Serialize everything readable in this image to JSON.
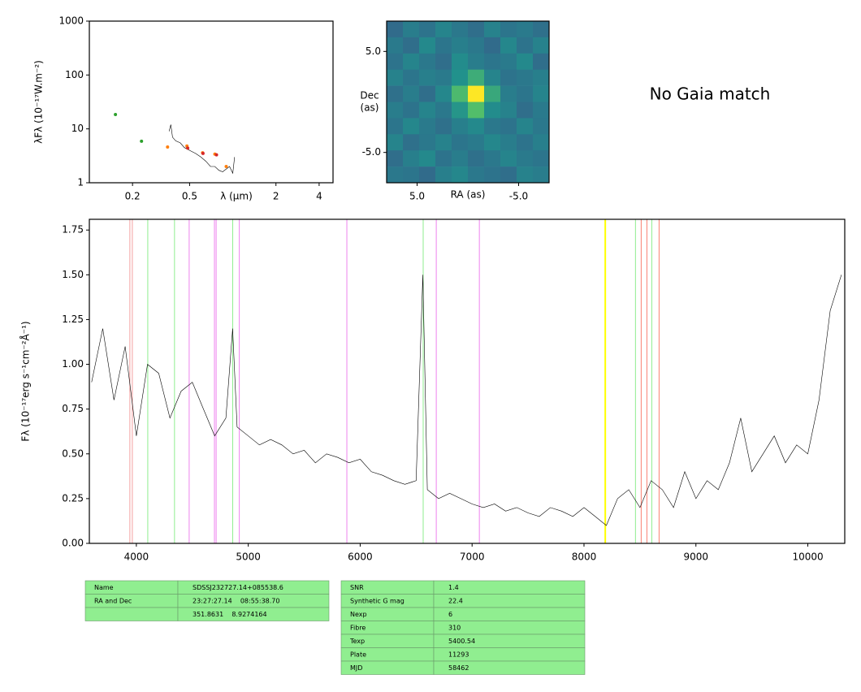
{
  "chart_data": [
    {
      "type": "scatter",
      "log_x": true,
      "log_y": true,
      "ylabel": "λFλ (10⁻¹⁷W.m⁻²)",
      "xlabel": "λ (μm)",
      "xlim": [
        0.1,
        5
      ],
      "xticks": [
        0.2,
        0.5,
        2,
        4
      ],
      "ylim": [
        1,
        1000
      ],
      "yticks": [
        1,
        10,
        100,
        1000
      ],
      "series": [
        {
          "color": "#2ca02c",
          "x": [
            0.152,
            0.231
          ],
          "values": [
            18.5,
            5.9
          ]
        },
        {
          "color": "#ff7f0e",
          "x": [
            0.351,
            0.479,
            0.616,
            0.75,
            0.9
          ],
          "values": [
            4.6,
            4.8,
            3.6,
            3.4,
            2.0
          ]
        },
        {
          "color": "#d62728",
          "x": [
            0.485,
            0.62,
            0.77
          ],
          "values": [
            4.4,
            3.5,
            3.3
          ]
        }
      ],
      "spectrum": {
        "color": "#000000",
        "x": [
          0.36,
          0.37,
          0.38,
          0.4,
          0.43,
          0.46,
          0.5,
          0.55,
          0.6,
          0.65,
          0.7,
          0.75,
          0.8,
          0.85,
          0.9,
          0.95,
          1.0,
          1.03
        ],
        "values": [
          9,
          12,
          7,
          6,
          5.5,
          4.5,
          4,
          3.5,
          3,
          2.5,
          2,
          2,
          1.7,
          1.6,
          1.8,
          2,
          1.5,
          3
        ]
      }
    },
    {
      "type": "image",
      "colormap": "viridis",
      "xlabel": "RA (as)",
      "ylabel": "Dec\n(as)",
      "xlim": [
        8,
        -8
      ],
      "ylim": [
        -8,
        8
      ],
      "xticks": [
        {
          "value": 5,
          "label": "5.0"
        },
        {
          "value": -5,
          "label": "-5.0"
        }
      ],
      "yticks": [
        {
          "value": 5,
          "label": "5.0"
        },
        {
          "value": -5,
          "label": "-5.0"
        }
      ],
      "matrix": [
        [
          0.35,
          0.42,
          0.38,
          0.45,
          0.4,
          0.36,
          0.44,
          0.39,
          0.41,
          0.37
        ],
        [
          0.41,
          0.36,
          0.47,
          0.39,
          0.43,
          0.4,
          0.35,
          0.46,
          0.38,
          0.44
        ],
        [
          0.38,
          0.45,
          0.4,
          0.36,
          0.48,
          0.42,
          0.39,
          0.41,
          0.47,
          0.36
        ],
        [
          0.44,
          0.39,
          0.43,
          0.41,
          0.5,
          0.62,
          0.45,
          0.38,
          0.4,
          0.43
        ],
        [
          0.37,
          0.42,
          0.36,
          0.46,
          0.68,
          1.0,
          0.6,
          0.42,
          0.39,
          0.45
        ],
        [
          0.42,
          0.38,
          0.45,
          0.4,
          0.52,
          0.7,
          0.48,
          0.44,
          0.36,
          0.41
        ],
        [
          0.39,
          0.46,
          0.41,
          0.37,
          0.43,
          0.47,
          0.4,
          0.38,
          0.45,
          0.4
        ],
        [
          0.45,
          0.37,
          0.4,
          0.44,
          0.39,
          0.41,
          0.46,
          0.42,
          0.38,
          0.43
        ],
        [
          0.36,
          0.43,
          0.47,
          0.38,
          0.42,
          0.37,
          0.4,
          0.45,
          0.41,
          0.39
        ],
        [
          0.4,
          0.39,
          0.35,
          0.43,
          0.46,
          0.4,
          0.38,
          0.36,
          0.44,
          0.42
        ]
      ]
    },
    {
      "type": "line",
      "ylabel": "Fλ (10⁻¹⁷erg s⁻¹cm⁻²Å⁻¹)",
      "xlim": [
        3580,
        10330
      ],
      "xticks": [
        4000,
        5000,
        6000,
        7000,
        8000,
        9000,
        10000
      ],
      "ylim": [
        0,
        1.81
      ],
      "yticks": [
        {
          "value": 0,
          "label": "0.00"
        },
        {
          "value": 0.25,
          "label": "0.25"
        },
        {
          "value": 0.5,
          "label": "0.50"
        },
        {
          "value": 0.75,
          "label": "0.75"
        },
        {
          "value": 1,
          "label": "1.00"
        },
        {
          "value": 1.25,
          "label": "1.25"
        },
        {
          "value": 1.5,
          "label": "1.50"
        },
        {
          "value": 1.75,
          "label": "1.75"
        }
      ],
      "vlines": [
        {
          "x": 3942,
          "color": "#f4a0a0"
        },
        {
          "x": 3964,
          "color": "#f4a0a0"
        },
        {
          "x": 4102,
          "color": "#90ee90"
        },
        {
          "x": 4341,
          "color": "#90ee90"
        },
        {
          "x": 4472,
          "color": "#ee82ee"
        },
        {
          "x": 4698,
          "color": "#ee82ee"
        },
        {
          "x": 4713,
          "color": "#ee82ee"
        },
        {
          "x": 4861,
          "color": "#90ee90"
        },
        {
          "x": 4920,
          "color": "#ee82ee"
        },
        {
          "x": 5881,
          "color": "#ee82ee"
        },
        {
          "x": 6563,
          "color": "#90ee90"
        },
        {
          "x": 6680,
          "color": "#ee82ee"
        },
        {
          "x": 7065,
          "color": "#ee82ee"
        },
        {
          "x": 8190,
          "color": "#ffff00"
        },
        {
          "x": 8460,
          "color": "#90ee90"
        },
        {
          "x": 8511,
          "color": "#fa8072"
        },
        {
          "x": 8562,
          "color": "#fa8072"
        },
        {
          "x": 8606,
          "color": "#90ee90"
        },
        {
          "x": 8671,
          "color": "#fa8072"
        }
      ],
      "series": [
        {
          "color": "#000000",
          "x": [
            3600,
            3700,
            3800,
            3900,
            4000,
            4100,
            4200,
            4300,
            4400,
            4500,
            4600,
            4700,
            4800,
            4860,
            4900,
            5000,
            5100,
            5200,
            5300,
            5400,
            5500,
            5600,
            5700,
            5800,
            5900,
            6000,
            6100,
            6200,
            6300,
            6400,
            6500,
            6560,
            6600,
            6700,
            6800,
            6900,
            7000,
            7100,
            7200,
            7300,
            7400,
            7500,
            7600,
            7700,
            7800,
            7900,
            8000,
            8100,
            8200,
            8300,
            8400,
            8500,
            8600,
            8700,
            8800,
            8900,
            9000,
            9100,
            9200,
            9300,
            9400,
            9500,
            9600,
            9700,
            9800,
            9900,
            10000,
            10100,
            10200,
            10300
          ],
          "values": [
            0.9,
            1.2,
            0.8,
            1.1,
            0.6,
            1.0,
            0.95,
            0.7,
            0.85,
            0.9,
            0.75,
            0.6,
            0.7,
            1.2,
            0.65,
            0.6,
            0.55,
            0.58,
            0.55,
            0.5,
            0.52,
            0.45,
            0.5,
            0.48,
            0.45,
            0.47,
            0.4,
            0.38,
            0.35,
            0.33,
            0.35,
            1.5,
            0.3,
            0.25,
            0.28,
            0.25,
            0.22,
            0.2,
            0.22,
            0.18,
            0.2,
            0.17,
            0.15,
            0.2,
            0.18,
            0.15,
            0.2,
            0.15,
            0.1,
            0.25,
            0.3,
            0.2,
            0.35,
            0.3,
            0.2,
            0.4,
            0.25,
            0.35,
            0.3,
            0.45,
            0.7,
            0.4,
            0.5,
            0.6,
            0.45,
            0.55,
            0.5,
            0.8,
            1.3,
            1.5
          ]
        }
      ]
    }
  ],
  "annotation": "No Gaia match",
  "tables": [
    {
      "rows": [
        [
          "Name",
          "SDSSJ232727.14+085538.6"
        ],
        [
          "RA and Dec",
          "23:27:27.14    08:55:38.70"
        ],
        [
          null,
          "351.8631    8.9274164"
        ]
      ]
    },
    {
      "rows": [
        [
          "SNR",
          "1.4"
        ],
        [
          "Synthetic G mag",
          "22.4"
        ],
        [
          "Nexp",
          "6"
        ],
        [
          "Fibre",
          "310"
        ],
        [
          "Texp",
          "5400.54"
        ],
        [
          "Plate",
          "11293"
        ],
        [
          "MJD",
          "58462"
        ]
      ]
    }
  ]
}
